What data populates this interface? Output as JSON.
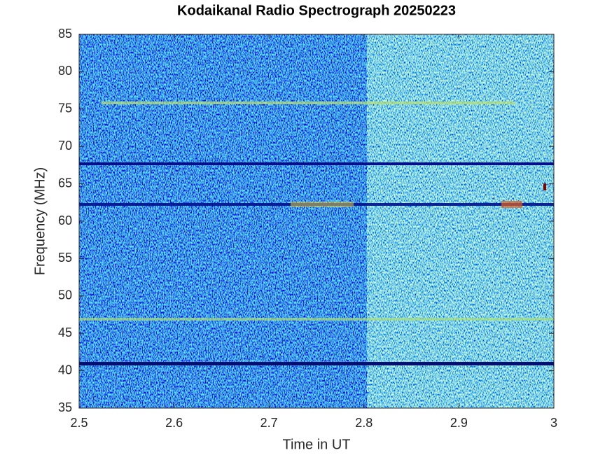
{
  "chart_data": {
    "type": "heatmap",
    "title": "Kodaikanal Radio Spectrograph  20250223",
    "x_label": "Time in UT",
    "y_label": "Frequency (MHz)",
    "xlim": [
      2.5,
      3
    ],
    "xticks": [
      2.5,
      2.6,
      2.7,
      2.8,
      2.9,
      3
    ],
    "ylim": [
      35,
      85
    ],
    "yticks": [
      35,
      40,
      45,
      50,
      55,
      60,
      65,
      70,
      75,
      80,
      85
    ]
  }
}
